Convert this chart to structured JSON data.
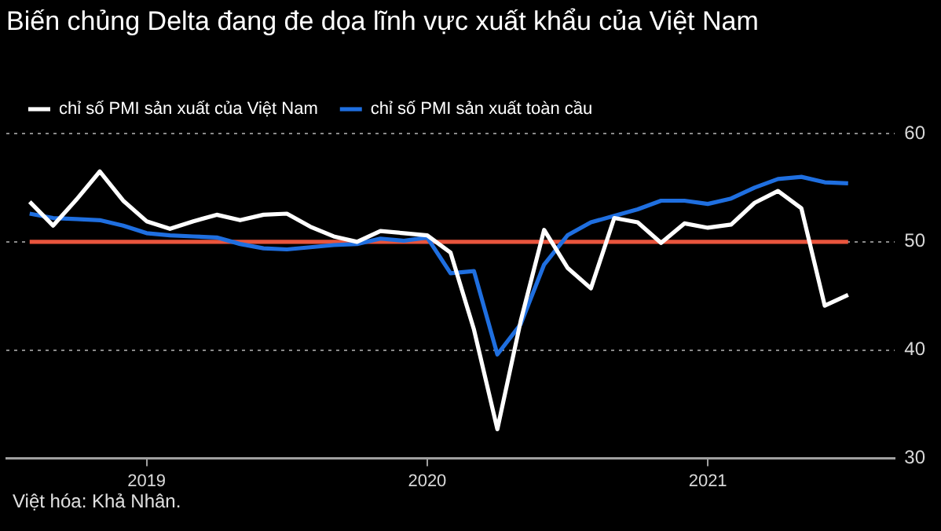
{
  "chart_data": {
    "type": "line",
    "title": "Biến chủng Delta đang đe dọa lĩnh vực xuất khẩu của Việt Nam",
    "annotations": [
      "Việt hóa: Khả Nhân."
    ],
    "x": [
      "2018-08",
      "2018-09",
      "2018-10",
      "2018-11",
      "2018-12",
      "2019-01",
      "2019-02",
      "2019-03",
      "2019-04",
      "2019-05",
      "2019-06",
      "2019-07",
      "2019-08",
      "2019-09",
      "2019-10",
      "2019-11",
      "2019-12",
      "2020-01",
      "2020-02",
      "2020-03",
      "2020-04",
      "2020-05",
      "2020-06",
      "2020-07",
      "2020-08",
      "2020-09",
      "2020-10",
      "2020-11",
      "2020-12",
      "2021-01",
      "2021-02",
      "2021-03",
      "2021-04",
      "2021-05",
      "2021-06",
      "2021-07"
    ],
    "series": [
      {
        "name": "chỉ số PMI sản xuất của Việt Nam",
        "color": "#ffffff",
        "values": [
          53.7,
          51.5,
          53.9,
          56.5,
          53.8,
          51.9,
          51.2,
          51.9,
          52.5,
          52.0,
          52.5,
          52.6,
          51.4,
          50.5,
          50.0,
          51.0,
          50.8,
          50.6,
          49.0,
          41.9,
          32.7,
          42.7,
          51.1,
          47.6,
          45.7,
          52.2,
          51.8,
          49.9,
          51.7,
          51.3,
          51.6,
          53.6,
          54.7,
          53.1,
          44.1,
          45.1
        ]
      },
      {
        "name": "chỉ số PMI sản xuất toàn cầu",
        "color": "#1f6fe0",
        "values": [
          52.6,
          52.2,
          52.1,
          52.0,
          51.5,
          50.8,
          50.6,
          50.5,
          50.4,
          49.8,
          49.4,
          49.3,
          49.5,
          49.7,
          49.8,
          50.3,
          50.1,
          50.4,
          47.1,
          47.3,
          39.6,
          42.4,
          47.9,
          50.6,
          51.8,
          52.4,
          53.0,
          53.8,
          53.8,
          53.5,
          54.0,
          55.0,
          55.8,
          56.0,
          55.5,
          55.4
        ]
      }
    ],
    "xlim": [
      "2018-07",
      "2021-09"
    ],
    "xticks": [
      {
        "value": "2019-01",
        "label": "2019"
      },
      {
        "value": "2020-01",
        "label": "2020"
      },
      {
        "value": "2021-01",
        "label": "2021"
      }
    ],
    "ylim": [
      30,
      60
    ],
    "yticks": [
      30,
      40,
      50,
      60
    ],
    "ref_lines": [
      {
        "axis": "y",
        "value": 50,
        "color": "#e8553d"
      }
    ],
    "grid": "y",
    "legend": "top left",
    "marker": "none",
    "line_style": "solid"
  }
}
